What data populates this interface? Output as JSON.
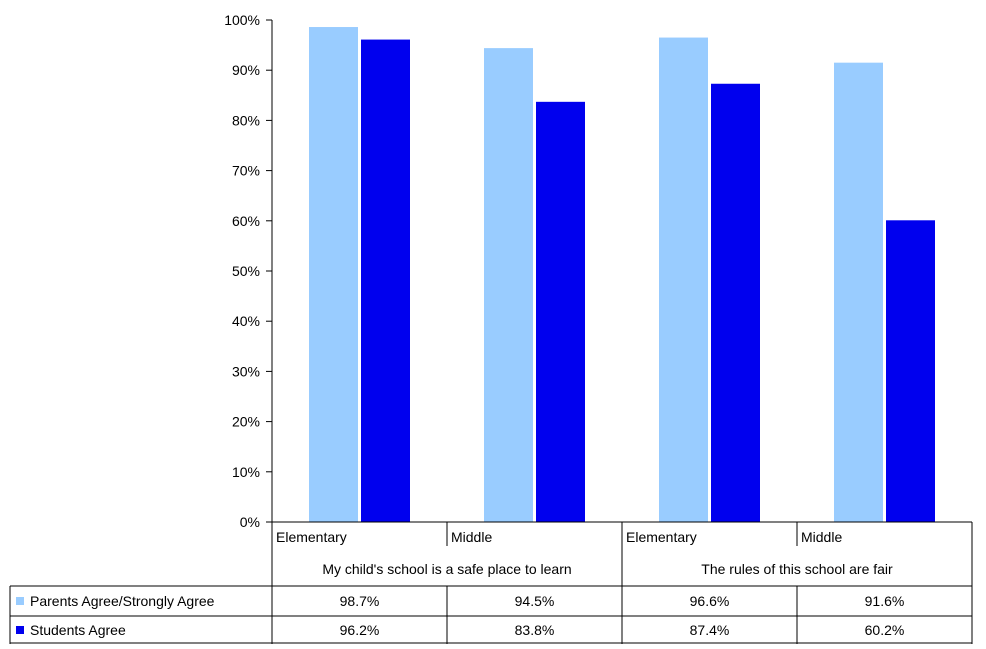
{
  "chart_data": {
    "type": "bar",
    "title": "",
    "xlabel": "",
    "ylabel": "",
    "ylim": [
      0,
      100
    ],
    "y_ticks": [
      0,
      10,
      20,
      30,
      40,
      50,
      60,
      70,
      80,
      90,
      100
    ],
    "y_tick_labels": [
      "0%",
      "10%",
      "20%",
      "30%",
      "40%",
      "50%",
      "60%",
      "70%",
      "80%",
      "90%",
      "100%"
    ],
    "categories": [
      "Elementary",
      "Middle",
      "Elementary",
      "Middle"
    ],
    "groups": [
      {
        "label": "My child's school is a safe place to learn",
        "categories": [
          0,
          1
        ]
      },
      {
        "label": "The rules of this school are fair",
        "categories": [
          2,
          3
        ]
      }
    ],
    "series": [
      {
        "name": "Parents Agree/Strongly Agree",
        "color": "#99ccff",
        "values": [
          98.7,
          94.5,
          96.6,
          91.6
        ],
        "labels": [
          "98.7%",
          "94.5%",
          "96.6%",
          "91.6%"
        ]
      },
      {
        "name": "Students Agree",
        "color": "#0000ee",
        "values": [
          96.2,
          83.8,
          87.4,
          60.2
        ],
        "labels": [
          "96.2%",
          "83.8%",
          "87.4%",
          "60.2%"
        ]
      }
    ],
    "grid": false,
    "legend": "data-table-left"
  }
}
